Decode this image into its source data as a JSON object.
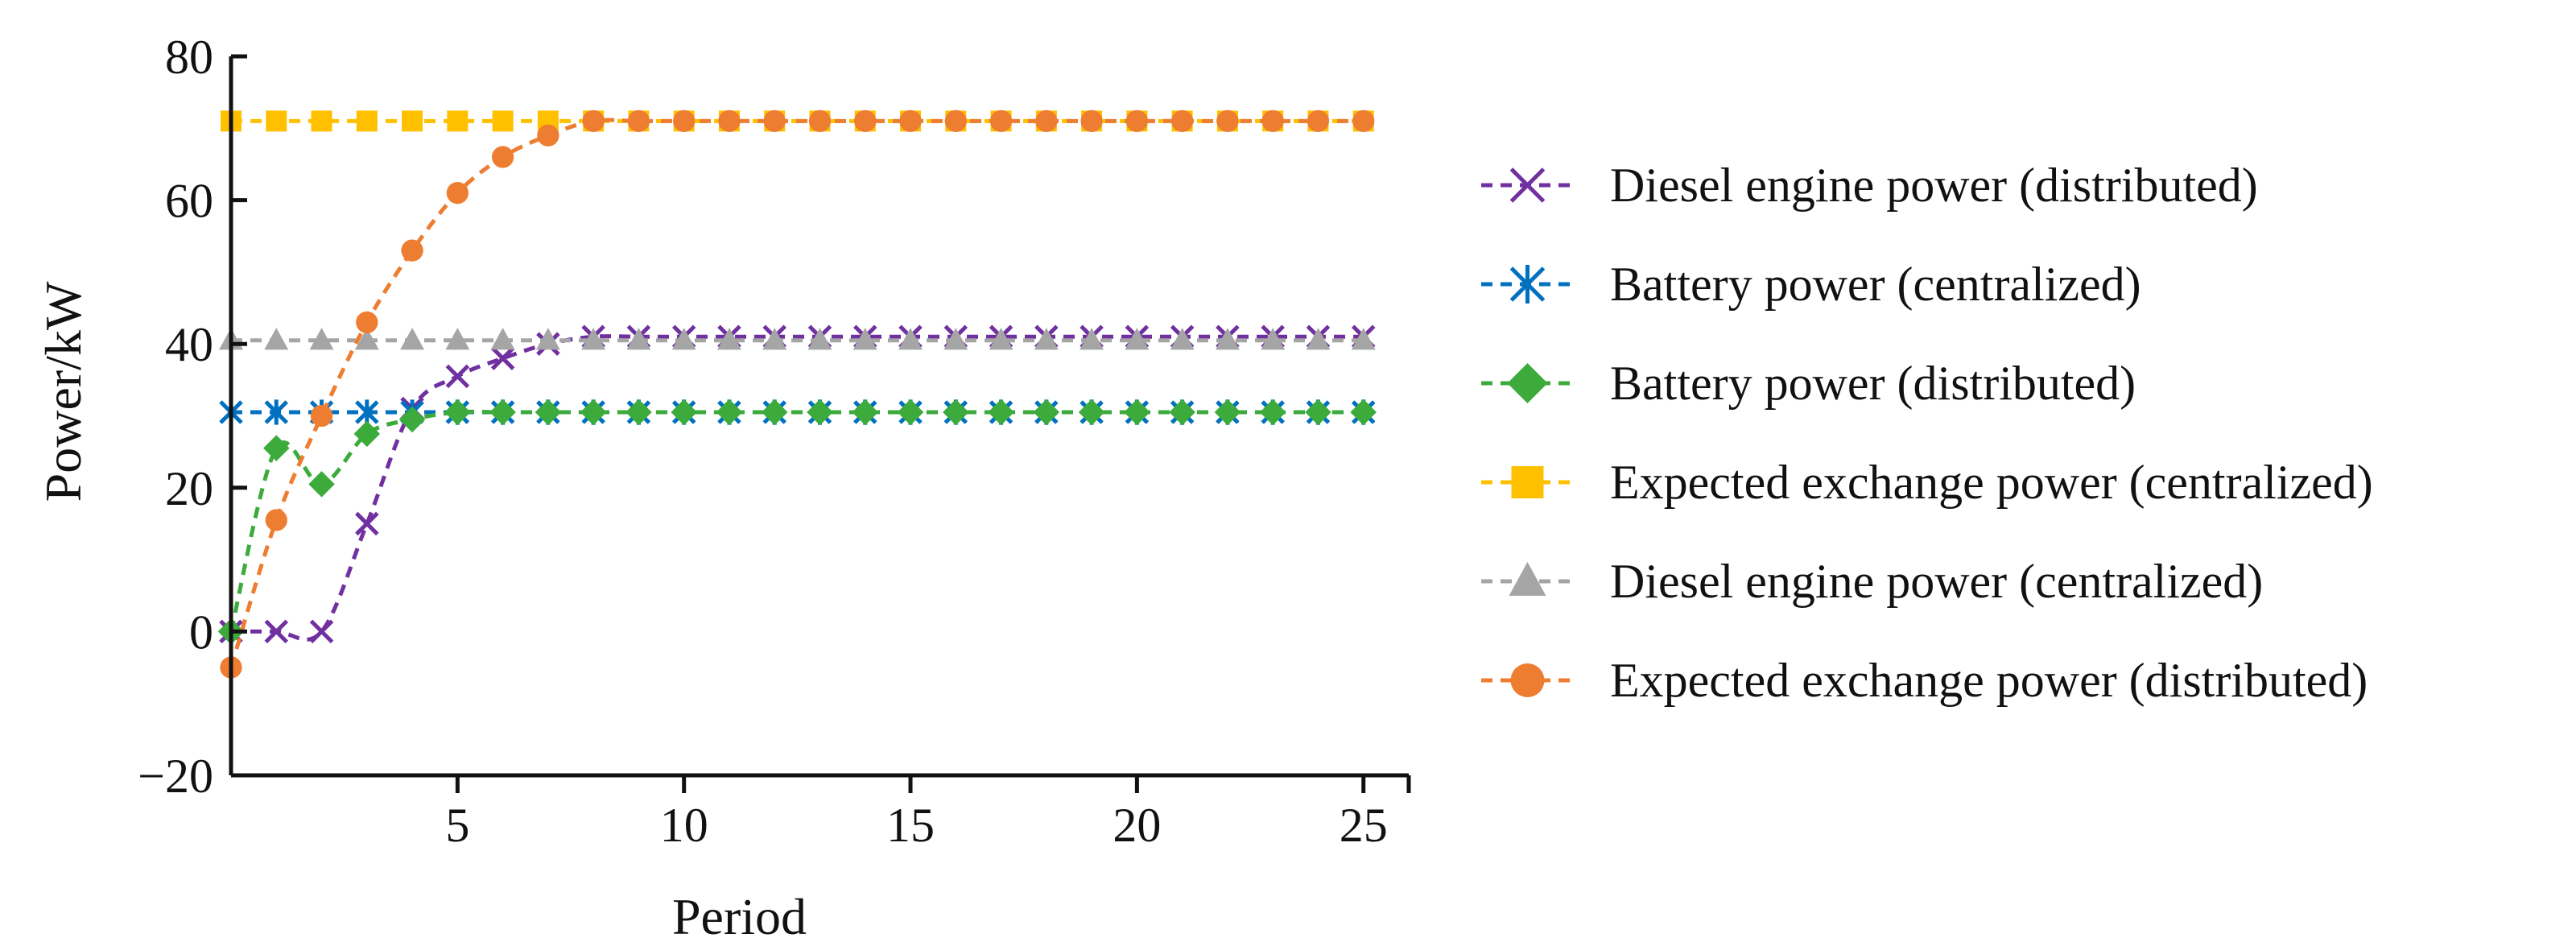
{
  "chart_data": {
    "type": "line",
    "title": "",
    "xlabel": "Period",
    "ylabel": "Power/kW",
    "xlim": [
      0,
      26
    ],
    "ylim": [
      -20,
      80
    ],
    "x_ticks": [
      5,
      10,
      15,
      20,
      25
    ],
    "y_ticks": [
      -20,
      0,
      20,
      40,
      60,
      80
    ],
    "y_tick_labels": [
      "−20",
      "0",
      "20",
      "40",
      "60",
      "80"
    ],
    "grid": false,
    "legend_position": "right",
    "x": [
      0,
      1,
      2,
      3,
      4,
      5,
      6,
      7,
      8,
      9,
      10,
      11,
      12,
      13,
      14,
      15,
      16,
      17,
      18,
      19,
      20,
      21,
      22,
      23,
      24,
      25
    ],
    "series": [
      {
        "name": "Diesel engine power (distributed)",
        "color": "#7030A0",
        "marker": "x",
        "values": [
          0,
          0,
          0,
          15,
          31,
          35.5,
          38,
          40,
          41,
          41,
          41,
          41,
          41,
          41,
          41,
          41,
          41,
          41,
          41,
          41,
          41,
          41,
          41,
          41,
          41,
          41
        ]
      },
      {
        "name": "Battery power (centralized)",
        "color": "#0070C0",
        "marker": "asterisk",
        "values": [
          30.5,
          30.5,
          30.5,
          30.5,
          30.5,
          30.5,
          30.5,
          30.5,
          30.5,
          30.5,
          30.5,
          30.5,
          30.5,
          30.5,
          30.5,
          30.5,
          30.5,
          30.5,
          30.5,
          30.5,
          30.5,
          30.5,
          30.5,
          30.5,
          30.5,
          30.5
        ]
      },
      {
        "name": "Battery power (distributed)",
        "color": "#3CAB3C",
        "marker": "diamond",
        "values": [
          0,
          25.5,
          20.5,
          27.5,
          29.5,
          30.5,
          30.5,
          30.5,
          30.5,
          30.5,
          30.5,
          30.5,
          30.5,
          30.5,
          30.5,
          30.5,
          30.5,
          30.5,
          30.5,
          30.5,
          30.5,
          30.5,
          30.5,
          30.5,
          30.5,
          30.5
        ]
      },
      {
        "name": "Expected exchange power (centralized)",
        "color": "#FFC000",
        "marker": "square",
        "values": [
          71,
          71,
          71,
          71,
          71,
          71,
          71,
          71,
          71,
          71,
          71,
          71,
          71,
          71,
          71,
          71,
          71,
          71,
          71,
          71,
          71,
          71,
          71,
          71,
          71,
          71
        ]
      },
      {
        "name": "Diesel engine power (centralized)",
        "color": "#A5A5A5",
        "marker": "triangle",
        "values": [
          40.5,
          40.5,
          40.5,
          40.5,
          40.5,
          40.5,
          40.5,
          40.5,
          40.5,
          40.5,
          40.5,
          40.5,
          40.5,
          40.5,
          40.5,
          40.5,
          40.5,
          40.5,
          40.5,
          40.5,
          40.5,
          40.5,
          40.5,
          40.5,
          40.5,
          40.5
        ]
      },
      {
        "name": "Expected exchange power (distributed)",
        "color": "#ED7D31",
        "marker": "circle",
        "values": [
          -5,
          15.5,
          30,
          43,
          53,
          61,
          66,
          69,
          71,
          71,
          71,
          71,
          71,
          71,
          71,
          71,
          71,
          71,
          71,
          71,
          71,
          71,
          71,
          71,
          71,
          71
        ]
      }
    ]
  }
}
